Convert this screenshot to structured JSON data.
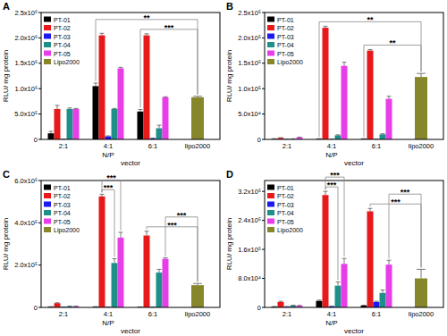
{
  "chart_data": [
    {
      "type": "bar",
      "title": "A",
      "y_label": "RLU/ mg protein",
      "x_label": "vector",
      "categories": [
        "2:1",
        "4:1",
        "6:1",
        "lipo2000"
      ],
      "ylim": [
        0,
        2500000
      ],
      "yticks": [
        0,
        {
          "value": 500000,
          "label": "5.0x10⁵"
        },
        {
          "value": 1000000,
          "label": "1.0x10⁶"
        },
        {
          "value": 1500000,
          "label": "1.5x10⁶"
        },
        {
          "value": 2000000,
          "label": "2.0x10⁶"
        },
        {
          "value": 2500000,
          "label": "2.5x10⁶"
        }
      ],
      "grid": false,
      "legend": "upper left",
      "series": [
        {
          "name": "PT-01",
          "color": "#000000",
          "values": [
            120000,
            1050000,
            550000,
            null
          ],
          "errors": [
            40000,
            60000,
            40000,
            null
          ]
        },
        {
          "name": "PT-02",
          "color": "#e8191a",
          "values": [
            600000,
            2050000,
            2050000,
            null
          ],
          "errors": [
            70000,
            40000,
            30000,
            null
          ]
        },
        {
          "name": "PT-03",
          "color": "#1a1aee",
          "values": [
            5000,
            60000,
            20000,
            null
          ],
          "errors": [
            2000,
            10000,
            5000,
            null
          ]
        },
        {
          "name": "PT-04",
          "color": "#1f8f8a",
          "values": [
            600000,
            600000,
            220000,
            null
          ],
          "errors": [
            20000,
            10000,
            60000,
            null
          ]
        },
        {
          "name": "PT-05",
          "color": "#e83ee8",
          "values": [
            600000,
            1400000,
            830000,
            null
          ],
          "errors": [
            10000,
            20000,
            10000,
            null
          ]
        },
        {
          "name": "Lipo2000",
          "color": "#86862a",
          "values": [
            null,
            null,
            null,
            830000
          ],
          "errors": [
            null,
            null,
            null,
            20000
          ]
        }
      ],
      "annotations": [
        {
          "text": "N/P",
          "categories": [
            "2:1",
            "4:1",
            "6:1"
          ]
        },
        {
          "text": "***",
          "from": {
            "category": "6:1",
            "series": "PT-01"
          },
          "to": {
            "category": "lipo2000",
            "series": "Lipo2000"
          }
        },
        {
          "text": "**",
          "from": {
            "category": "4:1",
            "series": "PT-01"
          },
          "to": {
            "category": "lipo2000",
            "series": "Lipo2000"
          }
        }
      ]
    },
    {
      "type": "bar",
      "title": "B",
      "y_label": "RLU/ mg protein",
      "x_label": "vector",
      "categories": [
        "2:1",
        "4:1",
        "6:1",
        "lipo2000"
      ],
      "ylim": [
        0,
        250000
      ],
      "yticks": [
        0,
        {
          "value": 50000,
          "label": "5.0x10⁴"
        },
        {
          "value": 100000,
          "label": "1.0x10⁵"
        },
        {
          "value": 150000,
          "label": "1.5x10⁵"
        },
        {
          "value": 200000,
          "label": "2.0x10⁵"
        },
        {
          "value": 250000,
          "label": "2.5x10⁵"
        }
      ],
      "grid": false,
      "legend": "upper left",
      "series": [
        {
          "name": "PT-01",
          "color": "#000000",
          "values": [
            1000,
            1000,
            1000,
            null
          ],
          "errors": [
            500,
            500,
            500,
            null
          ]
        },
        {
          "name": "PT-02",
          "color": "#e8191a",
          "values": [
            3000,
            220000,
            175000,
            null
          ],
          "errors": [
            500,
            3000,
            2000,
            null
          ]
        },
        {
          "name": "PT-03",
          "color": "#1a1aee",
          "values": [
            500,
            500,
            500,
            null
          ],
          "errors": [
            200,
            200,
            200,
            null
          ]
        },
        {
          "name": "PT-04",
          "color": "#1f8f8a",
          "values": [
            1000,
            8000,
            10000,
            null
          ],
          "errors": [
            300,
            1000,
            1000,
            null
          ]
        },
        {
          "name": "PT-05",
          "color": "#e83ee8",
          "values": [
            4000,
            145000,
            80000,
            null
          ],
          "errors": [
            500,
            7000,
            5000,
            null
          ]
        },
        {
          "name": "Lipo2000",
          "color": "#86862a",
          "values": [
            null,
            null,
            null,
            123000
          ],
          "errors": [
            null,
            null,
            null,
            7000
          ]
        }
      ],
      "annotations": [
        {
          "text": "N/P",
          "categories": [
            "2:1",
            "4:1",
            "6:1"
          ]
        },
        {
          "text": "**",
          "from": {
            "category": "6:1",
            "series": "PT-01"
          },
          "to": {
            "category": "lipo2000",
            "series": "Lipo2000"
          }
        },
        {
          "text": "**",
          "from": {
            "category": "4:1",
            "series": "PT-01"
          },
          "to": {
            "category": "lipo2000",
            "series": "Lipo2000"
          }
        }
      ]
    },
    {
      "type": "bar",
      "title": "C",
      "y_label": "RLU/ mg protein",
      "x_label": "vector",
      "categories": [
        "2:1",
        "4:1",
        "6:1",
        "lipo2000"
      ],
      "ylim": [
        0,
        600000
      ],
      "yticks": [
        0,
        {
          "value": 200000,
          "label": "2.0x10⁵"
        },
        {
          "value": 400000,
          "label": "4.0x10⁵"
        },
        {
          "value": 600000,
          "label": "6.0x10⁵"
        }
      ],
      "grid": false,
      "legend": "upper left",
      "series": [
        {
          "name": "PT-01",
          "color": "#000000",
          "values": [
            3000,
            3000,
            2000,
            null
          ],
          "errors": [
            500,
            500,
            500,
            null
          ]
        },
        {
          "name": "PT-02",
          "color": "#e8191a",
          "values": [
            20000,
            525000,
            340000,
            null
          ],
          "errors": [
            2000,
            10000,
            20000,
            null
          ]
        },
        {
          "name": "PT-03",
          "color": "#1a1aee",
          "values": [
            2000,
            2000,
            2000,
            null
          ],
          "errors": [
            500,
            500,
            500,
            null
          ]
        },
        {
          "name": "PT-04",
          "color": "#1f8f8a",
          "values": [
            5000,
            210000,
            165000,
            null
          ],
          "errors": [
            1000,
            20000,
            15000,
            null
          ]
        },
        {
          "name": "PT-05",
          "color": "#e83ee8",
          "values": [
            5000,
            330000,
            230000,
            null
          ],
          "errors": [
            1000,
            25000,
            5000,
            null
          ]
        },
        {
          "name": "Lipo2000",
          "color": "#86862a",
          "values": [
            null,
            null,
            null,
            105000
          ],
          "errors": [
            null,
            null,
            null,
            8000
          ]
        }
      ],
      "annotations": [
        {
          "text": "N/P",
          "categories": [
            "2:1",
            "4:1",
            "6:1"
          ]
        },
        {
          "text": "***",
          "from": {
            "category": "4:1",
            "series": "PT-02"
          },
          "to": {
            "category": "4:1",
            "series": "PT-04"
          }
        },
        {
          "text": "***",
          "from": {
            "category": "4:1",
            "series": "PT-02"
          },
          "to": {
            "category": "4:1",
            "series": "PT-05"
          }
        },
        {
          "text": "***",
          "from": {
            "category": "6:1",
            "series": "PT-02"
          },
          "to": {
            "category": "lipo2000",
            "series": "Lipo2000"
          }
        },
        {
          "text": "***",
          "from": {
            "category": "6:1",
            "series": "PT-05"
          },
          "to": {
            "category": "lipo2000",
            "series": "Lipo2000"
          }
        }
      ]
    },
    {
      "type": "bar",
      "title": "D",
      "y_label": "RLU/ mg protein",
      "x_label": "vector",
      "categories": [
        "2:1",
        "4:1",
        "6:1",
        "lipo2000"
      ],
      "ylim": [
        0,
        350000
      ],
      "yticks": [
        0,
        {
          "value": 80000,
          "label": "8.0x10⁴"
        },
        {
          "value": 160000,
          "label": "1.6x10⁵"
        },
        {
          "value": 240000,
          "label": "2.4x10⁵"
        },
        {
          "value": 320000,
          "label": "3.2x10⁵"
        }
      ],
      "grid": false,
      "legend": "upper left",
      "series": [
        {
          "name": "PT-01",
          "color": "#000000",
          "values": [
            2000,
            18000,
            5000,
            null
          ],
          "errors": [
            500,
            2000,
            1000,
            null
          ]
        },
        {
          "name": "PT-02",
          "color": "#e8191a",
          "values": [
            15000,
            310000,
            265000,
            null
          ],
          "errors": [
            2000,
            10000,
            8000,
            null
          ]
        },
        {
          "name": "PT-03",
          "color": "#1a1aee",
          "values": [
            2000,
            3000,
            15000,
            null
          ],
          "errors": [
            500,
            500,
            2000,
            null
          ]
        },
        {
          "name": "PT-04",
          "color": "#1f8f8a",
          "values": [
            5000,
            60000,
            40000,
            null
          ],
          "errors": [
            1000,
            10000,
            8000,
            null
          ]
        },
        {
          "name": "PT-05",
          "color": "#e83ee8",
          "values": [
            5000,
            120000,
            118000,
            null
          ],
          "errors": [
            500,
            15000,
            12000,
            null
          ]
        },
        {
          "name": "Lipo2000",
          "color": "#86862a",
          "values": [
            null,
            null,
            null,
            80000
          ],
          "errors": [
            null,
            null,
            null,
            25000
          ]
        }
      ],
      "annotations": [
        {
          "text": "N/P",
          "categories": [
            "2:1",
            "4:1",
            "6:1"
          ]
        },
        {
          "text": "***",
          "from": {
            "category": "4:1",
            "series": "PT-02"
          },
          "to": {
            "category": "4:1",
            "series": "PT-04"
          }
        },
        {
          "text": "***",
          "from": {
            "category": "4:1",
            "series": "PT-02"
          },
          "to": {
            "category": "4:1",
            "series": "PT-05"
          }
        },
        {
          "text": "***",
          "from": {
            "category": "6:1",
            "series": "PT-02"
          },
          "to": {
            "category": "lipo2000",
            "series": "Lipo2000"
          }
        },
        {
          "text": "***",
          "from": {
            "category": "6:1",
            "series": "PT-05"
          },
          "to": {
            "category": "lipo2000",
            "series": "Lipo2000"
          }
        }
      ]
    }
  ]
}
